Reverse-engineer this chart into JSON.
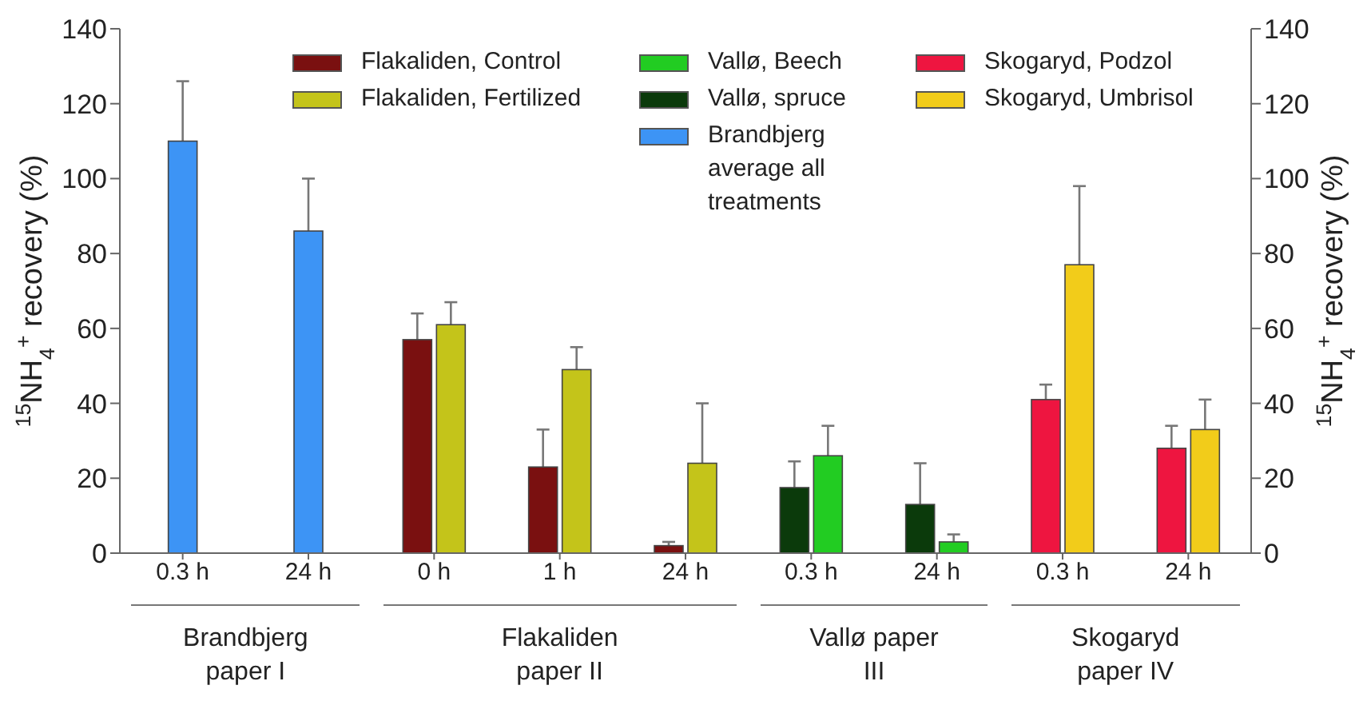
{
  "chart_data": {
    "type": "bar",
    "categories": [
      "0.3 h",
      "24 h",
      "0 h",
      "1 h",
      "24 h",
      "0.3 h",
      "24 h",
      "0.3 h",
      "24 h"
    ],
    "series": [
      {
        "name": "Flakaliden, Control",
        "color": "#7a1010",
        "values": [
          null,
          null,
          57,
          23,
          2,
          null,
          null,
          null,
          null
        ],
        "errors": [
          null,
          null,
          7,
          10,
          1,
          null,
          null,
          null,
          null
        ]
      },
      {
        "name": "Flakaliden, Fertilized",
        "color": "#c4c41a",
        "values": [
          null,
          null,
          61,
          49,
          24,
          null,
          null,
          null,
          null
        ],
        "errors": [
          null,
          null,
          6,
          6,
          16,
          null,
          null,
          null,
          null
        ]
      },
      {
        "name": "Vallø, spruce",
        "color": "#0b3a0b",
        "values": [
          null,
          null,
          null,
          null,
          null,
          17.5,
          13,
          null,
          null
        ],
        "errors": [
          null,
          null,
          null,
          null,
          null,
          7,
          11,
          null,
          null
        ]
      },
      {
        "name": "Vallø, Beech",
        "color": "#22cc22",
        "values": [
          null,
          null,
          null,
          null,
          null,
          26,
          3,
          null,
          null
        ],
        "errors": [
          null,
          null,
          null,
          null,
          null,
          8,
          2,
          null,
          null
        ]
      },
      {
        "name": "Brandbjerg average all treatments",
        "color": "#3d94f5",
        "values": [
          110,
          86,
          null,
          null,
          null,
          null,
          null,
          null,
          null
        ],
        "errors": [
          16,
          14,
          null,
          null,
          null,
          null,
          null,
          null,
          null
        ]
      },
      {
        "name": "Skogaryd, Podzol",
        "color": "#ee1540",
        "values": [
          null,
          null,
          null,
          null,
          null,
          null,
          null,
          41,
          28
        ],
        "errors": [
          null,
          null,
          null,
          null,
          null,
          null,
          null,
          4,
          6
        ]
      },
      {
        "name": "Skogaryd, Umbrisol",
        "color": "#f2cc1a",
        "values": [
          null,
          null,
          null,
          null,
          null,
          null,
          null,
          77,
          33
        ],
        "errors": [
          null,
          null,
          null,
          null,
          null,
          null,
          null,
          21,
          8
        ]
      }
    ],
    "ylabel": "$^{15}$NH$_{4}$$^{+}$ recovery (%)",
    "y2label": "$^{15}$NH$_{4}$$^{+}$ recovery (%)",
    "ylim": [
      0,
      140
    ],
    "yticks": [
      0,
      20,
      40,
      60,
      80,
      100,
      120,
      140
    ],
    "y2lim": [
      0,
      140
    ],
    "y2ticks": [
      0,
      20,
      40,
      60,
      80,
      100,
      120,
      140
    ],
    "annotations": [
      "Brandbjerg paper I",
      "Flakaliden paper II",
      "Vallø paper III",
      "Skogaryd paper IV"
    ],
    "legend": "top",
    "grid": false
  }
}
